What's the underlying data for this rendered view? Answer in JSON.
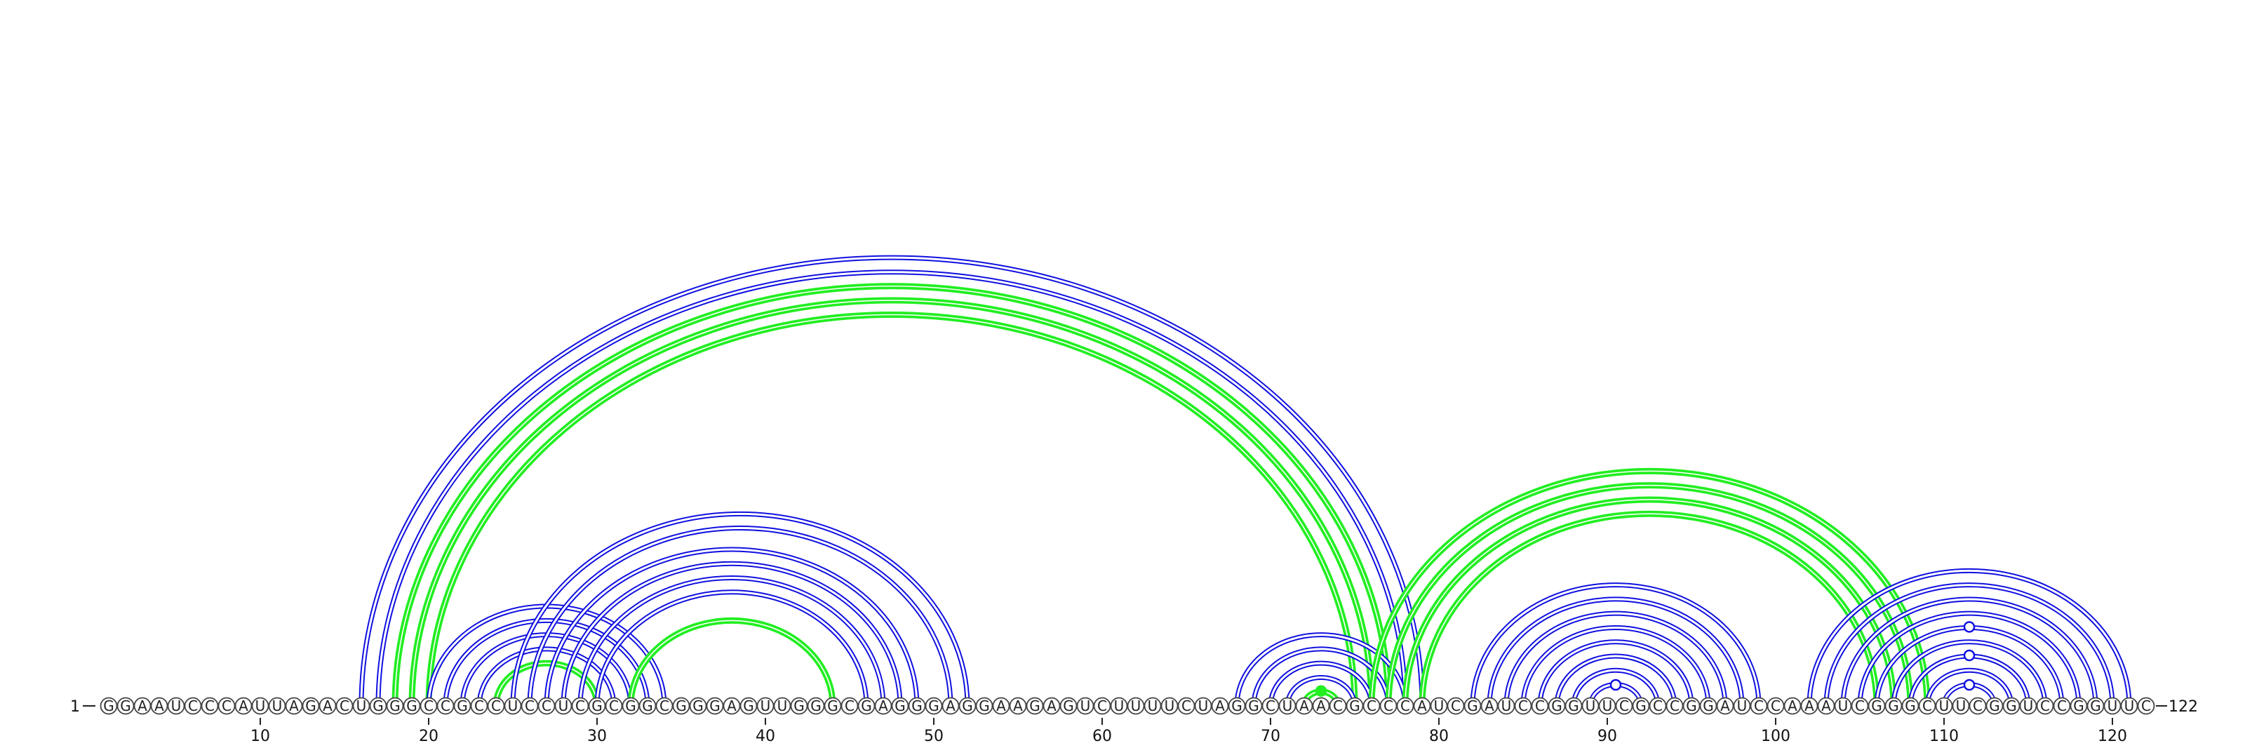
{
  "sequence": "GGAAUCCCAUUAGACUGGGCCGCCUCCUCGCGGCGGGAGUUGGGCGAGGGAGGAAGAGUCUUUUCUAGGCUAACGCCCAUCGAUCCGGUUCGCCGGAUCCAAAUCGGGCUUCGGUCCGGUUC",
  "start_label": "1",
  "end_label": "122",
  "tick_labels": [
    "10",
    "20",
    "30",
    "40",
    "50",
    "60",
    "70",
    "80",
    "90",
    "100",
    "110",
    "120"
  ],
  "colors": {
    "blue": "#1010e0",
    "green": "#22ee22",
    "background": "#ffffff"
  },
  "arcs": [
    {
      "i": 16,
      "j": 79,
      "color": "blue"
    },
    {
      "i": 17,
      "j": 78,
      "color": "blue"
    },
    {
      "i": 18,
      "j": 77,
      "color": "green"
    },
    {
      "i": 19,
      "j": 76,
      "color": "green"
    },
    {
      "i": 20,
      "j": 75,
      "color": "green"
    },
    {
      "i": 20,
      "j": 34,
      "color": "blue"
    },
    {
      "i": 21,
      "j": 33,
      "color": "blue"
    },
    {
      "i": 22,
      "j": 32,
      "color": "blue"
    },
    {
      "i": 23,
      "j": 31,
      "color": "blue"
    },
    {
      "i": 24,
      "j": 30,
      "color": "green"
    },
    {
      "i": 25,
      "j": 52,
      "color": "blue"
    },
    {
      "i": 26,
      "j": 51,
      "color": "blue"
    },
    {
      "i": 27,
      "j": 49,
      "color": "blue"
    },
    {
      "i": 28,
      "j": 48,
      "color": "blue"
    },
    {
      "i": 29,
      "j": 47,
      "color": "blue"
    },
    {
      "i": 30,
      "j": 46,
      "color": "blue"
    },
    {
      "i": 32,
      "j": 44,
      "color": "green"
    },
    {
      "i": 68,
      "j": 78,
      "color": "blue"
    },
    {
      "i": 69,
      "j": 77,
      "color": "blue"
    },
    {
      "i": 70,
      "j": 76,
      "color": "blue"
    },
    {
      "i": 71,
      "j": 75,
      "color": "blue"
    },
    {
      "i": 72,
      "j": 74,
      "color": "green"
    },
    {
      "i": 76,
      "j": 109,
      "color": "green"
    },
    {
      "i": 77,
      "j": 108,
      "color": "green"
    },
    {
      "i": 78,
      "j": 107,
      "color": "green"
    },
    {
      "i": 79,
      "j": 106,
      "color": "green"
    },
    {
      "i": 82,
      "j": 99,
      "color": "blue"
    },
    {
      "i": 83,
      "j": 98,
      "color": "blue"
    },
    {
      "i": 84,
      "j": 97,
      "color": "blue"
    },
    {
      "i": 85,
      "j": 96,
      "color": "blue"
    },
    {
      "i": 86,
      "j": 95,
      "color": "blue"
    },
    {
      "i": 87,
      "j": 94,
      "color": "blue"
    },
    {
      "i": 88,
      "j": 93,
      "color": "blue"
    },
    {
      "i": 89,
      "j": 92,
      "color": "blue"
    },
    {
      "i": 102,
      "j": 121,
      "color": "blue"
    },
    {
      "i": 103,
      "j": 120,
      "color": "blue"
    },
    {
      "i": 104,
      "j": 119,
      "color": "blue"
    },
    {
      "i": 105,
      "j": 118,
      "color": "blue"
    },
    {
      "i": 106,
      "j": 117,
      "color": "blue"
    },
    {
      "i": 107,
      "j": 116,
      "color": "blue"
    },
    {
      "i": 108,
      "j": 115,
      "color": "blue"
    },
    {
      "i": 109,
      "j": 114,
      "color": "blue"
    },
    {
      "i": 110,
      "j": 113,
      "color": "blue"
    }
  ],
  "loop_markers": [
    {
      "i": 90,
      "j": 91,
      "color": "blue"
    },
    {
      "i": 72,
      "j": 74,
      "color": "green"
    },
    {
      "i": 111,
      "j": 112,
      "color": "blue"
    },
    {
      "i": 108,
      "j": 115,
      "color": "blue"
    },
    {
      "i": 106,
      "j": 117,
      "color": "blue"
    }
  ]
}
